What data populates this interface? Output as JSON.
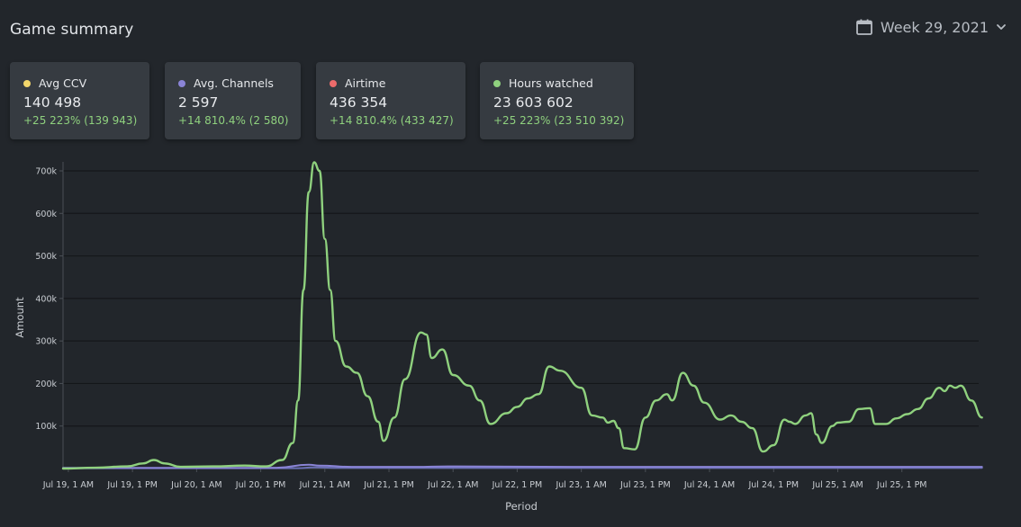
{
  "header": {
    "title": "Game summary",
    "week_label": "Week 29, 2021",
    "calendar_icon": "calendar-icon",
    "chevron_icon": "chevron-down-icon"
  },
  "cards": [
    {
      "label": "Avg CCV",
      "value": "140 498",
      "delta": "+25 223% (139 943)",
      "color": "#f2d66b"
    },
    {
      "label": "Avg. Channels",
      "value": "2 597",
      "delta": "+14 810.4% (2 580)",
      "color": "#8a84d6"
    },
    {
      "label": "Airtime",
      "value": "436 354",
      "delta": "+14 810.4% (433 427)",
      "color": "#ec6b6b"
    },
    {
      "label": "Hours watched",
      "value": "23 603 602",
      "delta": "+25 223% (23 510 392)",
      "color": "#8fd17e"
    }
  ],
  "chart_data": {
    "type": "line",
    "xlabel": "Period",
    "ylabel": "Amount",
    "ylim": [
      0,
      700000
    ],
    "xlim": [
      "2021-07-19T00:00",
      "2021-07-26T00:00"
    ],
    "yticks": [
      100000,
      200000,
      300000,
      400000,
      500000,
      600000,
      700000
    ],
    "ytick_labels": [
      "100k",
      "200k",
      "300k",
      "400k",
      "500k",
      "600k",
      "700k"
    ],
    "xticks": [
      "2021-07-19T01:00",
      "2021-07-19T13:00",
      "2021-07-20T01:00",
      "2021-07-20T13:00",
      "2021-07-21T01:00",
      "2021-07-21T13:00",
      "2021-07-22T01:00",
      "2021-07-22T13:00",
      "2021-07-23T01:00",
      "2021-07-23T13:00",
      "2021-07-24T01:00",
      "2021-07-24T13:00",
      "2021-07-25T01:00",
      "2021-07-25T13:00"
    ],
    "xtick_labels": [
      "Jul 19, 1 AM",
      "Jul 19, 1 PM",
      "Jul 20, 1 AM",
      "Jul 20, 1 PM",
      "Jul 21, 1 AM",
      "Jul 21, 1 PM",
      "Jul 22, 1 AM",
      "Jul 22, 1 PM",
      "Jul 23, 1 AM",
      "Jul 23, 1 PM",
      "Jul 24, 1 AM",
      "Jul 24, 1 PM",
      "Jul 25, 1 AM",
      "Jul 25, 1 PM"
    ],
    "grid": true,
    "series": [
      {
        "color": "#8fd17e",
        "points": [
          [
            "2021-07-19T00:00",
            0
          ],
          [
            "2021-07-19T06:00",
            2000
          ],
          [
            "2021-07-19T12:00",
            5000
          ],
          [
            "2021-07-19T15:00",
            12000
          ],
          [
            "2021-07-19T17:00",
            20000
          ],
          [
            "2021-07-19T19:00",
            12000
          ],
          [
            "2021-07-19T22:00",
            4000
          ],
          [
            "2021-07-20T04:00",
            5000
          ],
          [
            "2021-07-20T10:00",
            7000
          ],
          [
            "2021-07-20T14:00",
            5000
          ],
          [
            "2021-07-20T17:00",
            20000
          ],
          [
            "2021-07-20T19:00",
            60000
          ],
          [
            "2021-07-20T20:00",
            160000
          ],
          [
            "2021-07-20T21:00",
            420000
          ],
          [
            "2021-07-20T22:00",
            650000
          ],
          [
            "2021-07-20T23:00",
            720000
          ],
          [
            "2021-07-21T00:00",
            700000
          ],
          [
            "2021-07-21T01:00",
            540000
          ],
          [
            "2021-07-21T02:00",
            420000
          ],
          [
            "2021-07-21T03:00",
            300000
          ],
          [
            "2021-07-21T05:00",
            240000
          ],
          [
            "2021-07-21T07:00",
            225000
          ],
          [
            "2021-07-21T09:00",
            170000
          ],
          [
            "2021-07-21T11:00",
            110000
          ],
          [
            "2021-07-21T12:00",
            65000
          ],
          [
            "2021-07-21T14:00",
            120000
          ],
          [
            "2021-07-21T16:00",
            210000
          ],
          [
            "2021-07-21T19:00",
            320000
          ],
          [
            "2021-07-21T20:00",
            315000
          ],
          [
            "2021-07-21T21:00",
            260000
          ],
          [
            "2021-07-21T23:00",
            280000
          ],
          [
            "2021-07-22T01:00",
            220000
          ],
          [
            "2021-07-22T04:00",
            195000
          ],
          [
            "2021-07-22T06:00",
            160000
          ],
          [
            "2021-07-22T08:00",
            105000
          ],
          [
            "2021-07-22T11:00",
            130000
          ],
          [
            "2021-07-22T13:00",
            145000
          ],
          [
            "2021-07-22T15:00",
            165000
          ],
          [
            "2021-07-22T17:00",
            175000
          ],
          [
            "2021-07-22T19:00",
            240000
          ],
          [
            "2021-07-22T21:00",
            230000
          ],
          [
            "2021-07-23T01:00",
            190000
          ],
          [
            "2021-07-23T03:00",
            125000
          ],
          [
            "2021-07-23T05:00",
            120000
          ],
          [
            "2021-07-23T06:00",
            108000
          ],
          [
            "2021-07-23T07:00",
            112000
          ],
          [
            "2021-07-23T08:00",
            95000
          ],
          [
            "2021-07-23T09:00",
            48000
          ],
          [
            "2021-07-23T11:00",
            45000
          ],
          [
            "2021-07-23T13:00",
            120000
          ],
          [
            "2021-07-23T15:00",
            160000
          ],
          [
            "2021-07-23T17:00",
            175000
          ],
          [
            "2021-07-23T18:00",
            160000
          ],
          [
            "2021-07-23T20:00",
            225000
          ],
          [
            "2021-07-23T22:00",
            195000
          ],
          [
            "2021-07-24T00:00",
            155000
          ],
          [
            "2021-07-24T03:00",
            115000
          ],
          [
            "2021-07-24T05:00",
            125000
          ],
          [
            "2021-07-24T07:00",
            110000
          ],
          [
            "2021-07-24T09:00",
            95000
          ],
          [
            "2021-07-24T11:00",
            40000
          ],
          [
            "2021-07-24T13:00",
            55000
          ],
          [
            "2021-07-24T15:00",
            115000
          ],
          [
            "2021-07-24T16:00",
            110000
          ],
          [
            "2021-07-24T17:00",
            105000
          ],
          [
            "2021-07-24T19:00",
            125000
          ],
          [
            "2021-07-24T20:00",
            130000
          ],
          [
            "2021-07-24T21:00",
            80000
          ],
          [
            "2021-07-24T22:00",
            60000
          ],
          [
            "2021-07-25T00:00",
            100000
          ],
          [
            "2021-07-25T01:00",
            108000
          ],
          [
            "2021-07-25T03:00",
            110000
          ],
          [
            "2021-07-25T05:00",
            140000
          ],
          [
            "2021-07-25T07:00",
            142000
          ],
          [
            "2021-07-25T08:00",
            105000
          ],
          [
            "2021-07-25T10:00",
            105000
          ],
          [
            "2021-07-25T12:00",
            118000
          ],
          [
            "2021-07-25T14:00",
            128000
          ],
          [
            "2021-07-25T16:00",
            140000
          ],
          [
            "2021-07-25T18:00",
            165000
          ],
          [
            "2021-07-25T20:00",
            190000
          ],
          [
            "2021-07-25T21:00",
            182000
          ],
          [
            "2021-07-25T22:00",
            195000
          ],
          [
            "2021-07-25T23:00",
            190000
          ],
          [
            "2021-07-26T00:00",
            195000
          ],
          [
            "2021-07-26T02:00",
            160000
          ],
          [
            "2021-07-26T04:00",
            120000
          ]
        ]
      },
      {
        "color": "#8a84d6",
        "points": [
          [
            "2021-07-19T00:00",
            1500
          ],
          [
            "2021-07-19T12:00",
            1500
          ],
          [
            "2021-07-20T00:00",
            1500
          ],
          [
            "2021-07-20T16:00",
            2000
          ],
          [
            "2021-07-20T22:00",
            9000
          ],
          [
            "2021-07-21T00:00",
            7000
          ],
          [
            "2021-07-21T06:00",
            4000
          ],
          [
            "2021-07-21T18:00",
            4000
          ],
          [
            "2021-07-22T00:00",
            5000
          ],
          [
            "2021-07-23T00:00",
            4000
          ],
          [
            "2021-07-24T00:00",
            4000
          ],
          [
            "2021-07-25T00:00",
            4000
          ],
          [
            "2021-07-26T04:00",
            4000
          ]
        ]
      },
      {
        "color": "#6a6fb5",
        "points": [
          [
            "2021-07-19T00:00",
            600
          ],
          [
            "2021-07-20T20:00",
            800
          ],
          [
            "2021-07-20T23:00",
            3000
          ],
          [
            "2021-07-21T04:00",
            1500
          ],
          [
            "2021-07-26T04:00",
            1500
          ]
        ]
      }
    ]
  }
}
